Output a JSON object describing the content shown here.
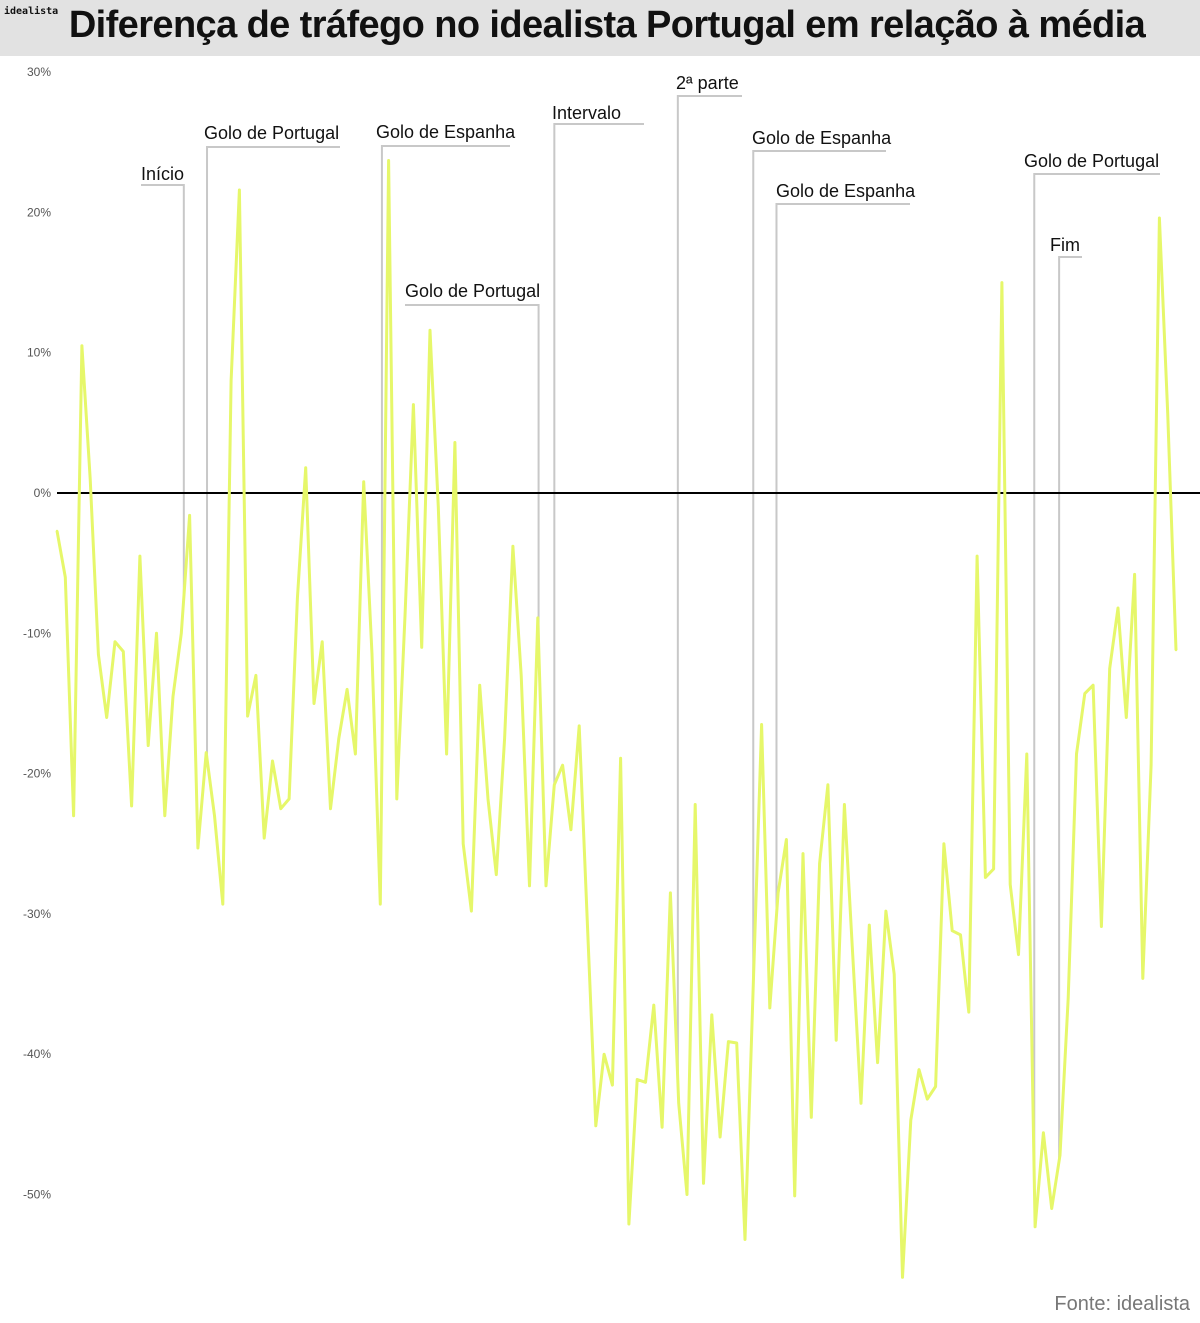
{
  "header": {
    "brand": "idealista",
    "title": "Diferença de tráfego no idealista Portugal em relação à média"
  },
  "footer": {
    "source": "Fonte: idealista"
  },
  "colors": {
    "line": "#e6f76a",
    "zero_line": "#000000",
    "annotation": "#c8c8c8",
    "header_bg": "#e2e2e2",
    "tick_text": "#555555"
  },
  "chart_data": {
    "type": "line",
    "title": "Diferença de tráfego no idealista Portugal em relação à média",
    "xlabel": "",
    "ylabel": "",
    "ylim": [
      -57,
      30
    ],
    "yticks": [
      30,
      20,
      10,
      0,
      -10,
      -20,
      -30,
      -40,
      -50
    ],
    "ytick_labels": [
      "30%",
      "20%",
      "10%",
      "0%",
      "-10%",
      "-20%",
      "-30%",
      "-40%",
      "-50%"
    ],
    "grid": false,
    "series": [
      {
        "values": [
          -2.7,
          -6.0,
          -23.0,
          10.5,
          1.0,
          -11.5,
          -16.0,
          -10.6,
          -11.3,
          -22.3,
          -4.5,
          -18.0,
          -10.0,
          -23.0,
          -14.5,
          -10.0,
          -1.6,
          -25.3,
          -18.5,
          -23.0,
          -29.3,
          8.0,
          21.6,
          -15.9,
          -13.0,
          -24.6,
          -19.1,
          -22.5,
          -21.8,
          -7.5,
          1.8,
          -15.0,
          -10.6,
          -22.5,
          -17.5,
          -14.0,
          -18.6,
          0.8,
          -11.5,
          -29.3,
          23.7,
          -21.8,
          -8.6,
          6.3,
          -11.0,
          11.6,
          -1.0,
          -18.6,
          3.6,
          -25.0,
          -29.8,
          -13.7,
          -21.8,
          -27.2,
          -17.5,
          -3.8,
          -13.0,
          -28.0,
          -8.9,
          -28.0,
          -20.8,
          -19.4,
          -24.0,
          -16.6,
          -30.9,
          -45.1,
          -40.0,
          -42.2,
          -18.9,
          -52.1,
          -41.8,
          -42.0,
          -36.5,
          -45.2,
          -28.5,
          -43.5,
          -50.0,
          -22.2,
          -49.2,
          -37.2,
          -45.9,
          -39.1,
          -39.2,
          -53.2,
          -35.0,
          -16.5,
          -36.7,
          -28.5,
          -24.7,
          -50.1,
          -25.7,
          -44.5,
          -26.4,
          -20.8,
          -39.0,
          -22.2,
          -32.9,
          -43.5,
          -30.8,
          -40.6,
          -29.8,
          -34.3,
          -55.9,
          -44.7,
          -41.1,
          -43.2,
          -42.3,
          -25.0,
          -31.2,
          -31.5,
          -37.0,
          -4.5,
          -27.4,
          -26.8,
          15.0,
          -27.9,
          -32.9,
          -18.6,
          -52.3,
          -45.6,
          -51.0,
          -47.2,
          -36.0,
          -18.6,
          -14.3,
          -13.7,
          -30.9,
          -12.5,
          -8.2,
          -16.0,
          -5.8,
          -34.6,
          -19.4,
          19.6,
          5.7,
          -11.2
        ]
      }
    ],
    "annotations": [
      {
        "label": "Início",
        "index": 15.3
      },
      {
        "label": "Golo de Portugal",
        "index": 18.1
      },
      {
        "label": "Golo de Espanha",
        "index": 39.2
      },
      {
        "label": "Golo de Portugal",
        "index": 58.1
      },
      {
        "label": "Intervalo",
        "index": 60.0
      },
      {
        "label": "2ª parte",
        "index": 74.9
      },
      {
        "label": "Golo de Espanha",
        "index": 84.0
      },
      {
        "label": "Golo de Espanha",
        "index": 86.8
      },
      {
        "label": "Golo de Portugal",
        "index": 117.9
      },
      {
        "label": "Fim",
        "index": 120.9
      }
    ]
  }
}
